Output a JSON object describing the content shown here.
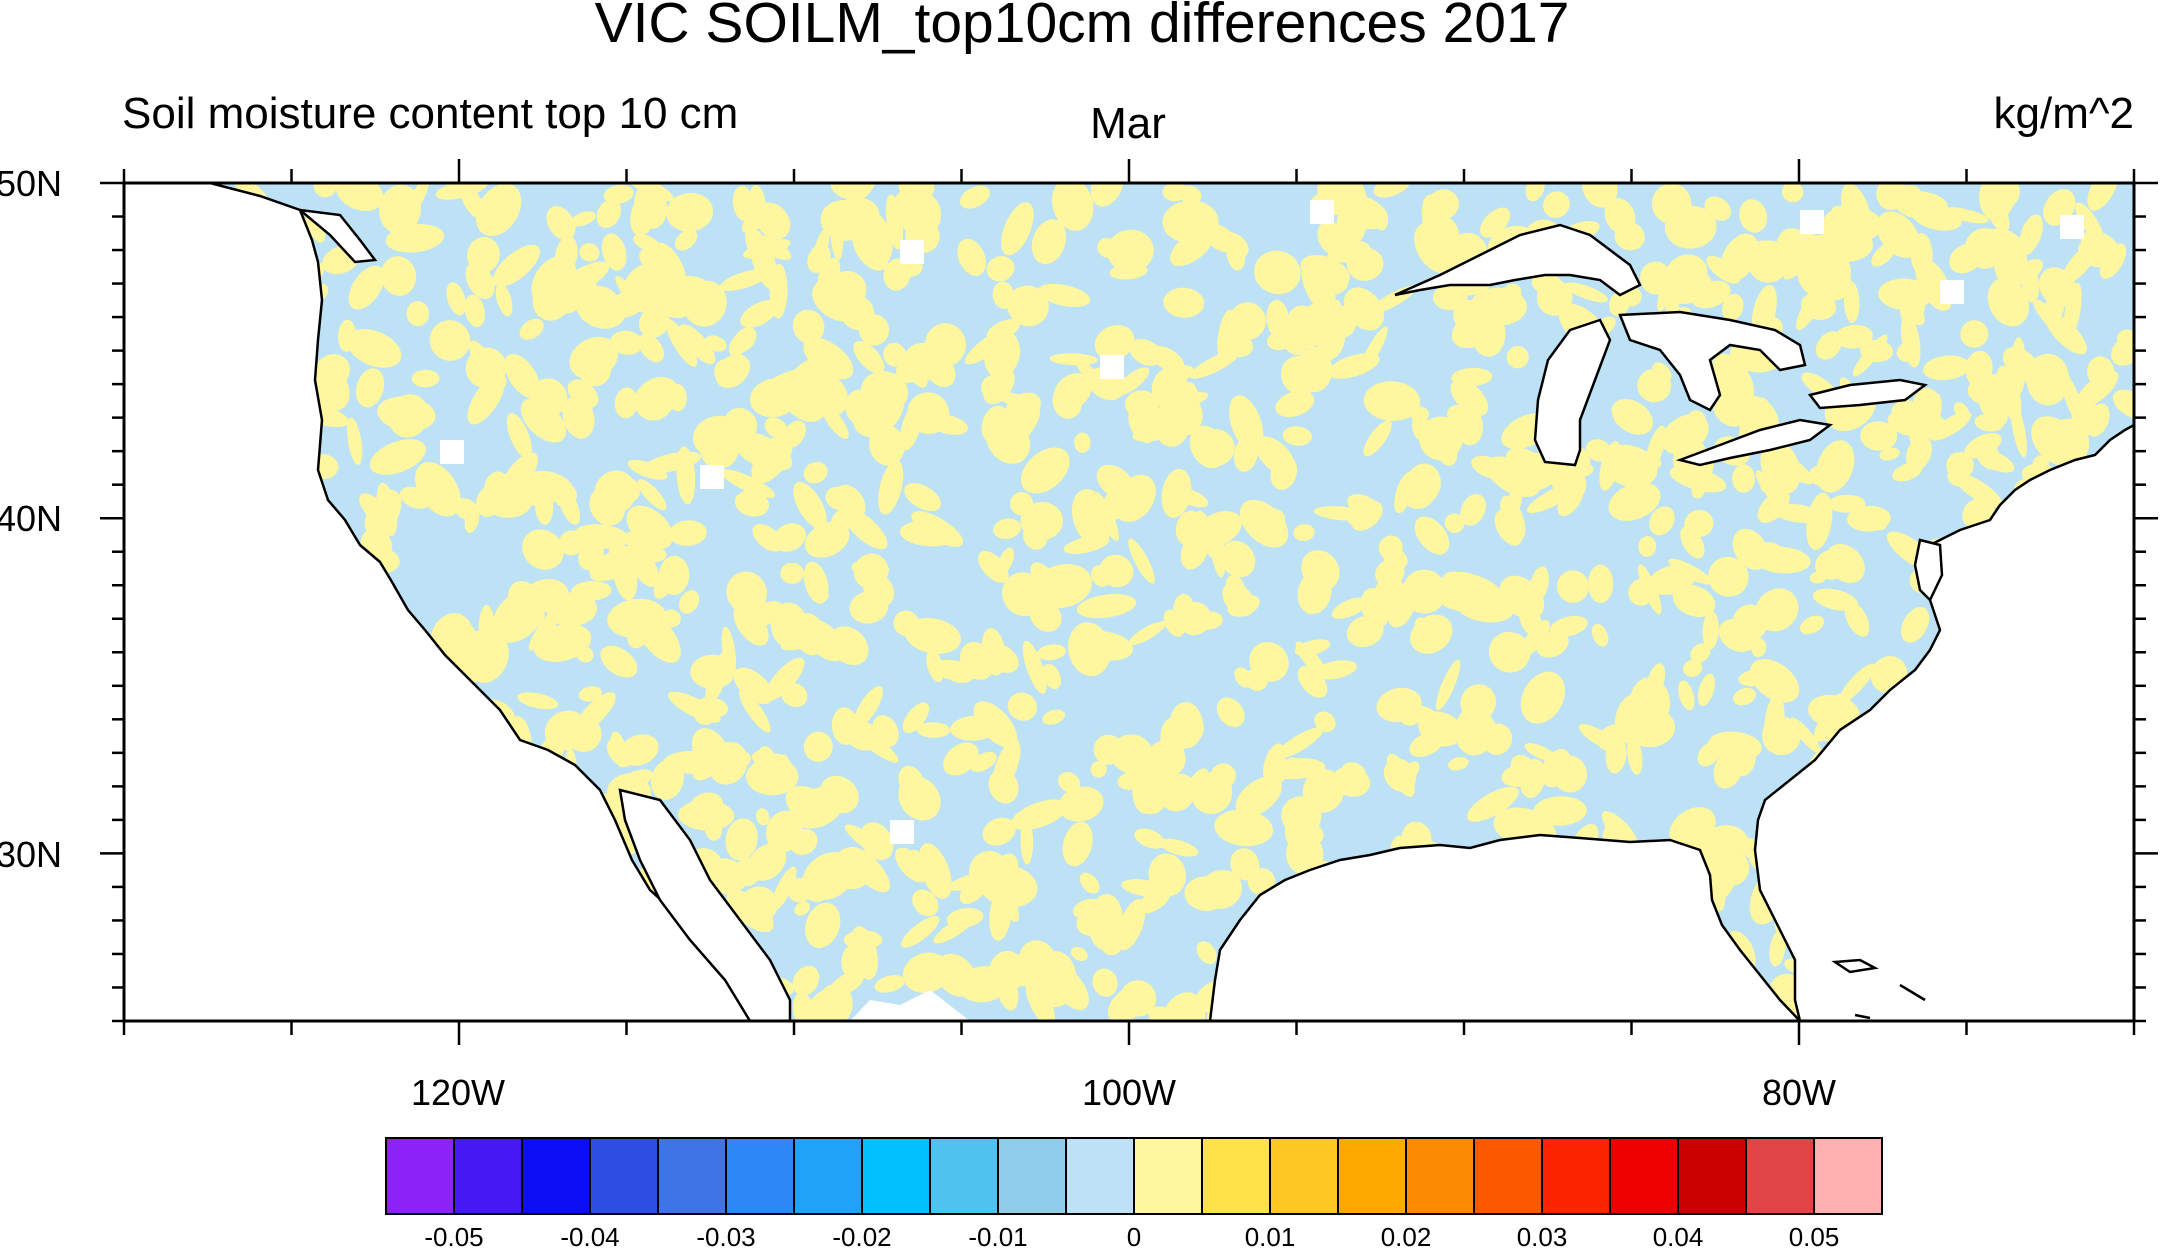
{
  "title": "VIC SOILM_top10cm differences 2017",
  "subtitle_left": "Soil moisture content top 10 cm",
  "subtitle_center": "Mar",
  "subtitle_right": "kg/m^2",
  "lat_labels": [
    "50N",
    "40N",
    "30N"
  ],
  "lon_labels": [
    "120W",
    "100W",
    "80W"
  ],
  "colorbar": {
    "colors": [
      "#8c22f5",
      "#4619f4",
      "#0c0ff4",
      "#2f4ee4",
      "#3e74e5",
      "#2d87f5",
      "#1fa2f8",
      "#00c0fe",
      "#4ec3f0",
      "#90cdea",
      "#bde2f5",
      "#fff6a0",
      "#ffe24a",
      "#fdc824",
      "#fca900",
      "#fc8a02",
      "#fc5800",
      "#fb2300",
      "#ec0000",
      "#cb0000",
      "#e04444",
      "#feb0b0"
    ],
    "labels": [
      "-0.05",
      "-0.04",
      "-0.03",
      "-0.02",
      "-0.01",
      "0",
      "0.01",
      "0.02",
      "0.03",
      "0.04",
      "0.05"
    ]
  },
  "chart_data": {
    "type": "heatmap",
    "title": "VIC SOILM_top10cm differences 2017",
    "subtitle_left": "Soil moisture content top 10 cm",
    "subtitle_center": "Mar",
    "units": "kg/m^2",
    "lon_range": [
      -130,
      -70
    ],
    "lat_range": [
      25,
      50
    ],
    "lon_ticks": [
      "120W",
      "100W",
      "80W"
    ],
    "lat_ticks": [
      "50N",
      "40N",
      "30N"
    ],
    "field": "mottled mix of near-zero differences",
    "dominant_classes": [
      {
        "range": "-0.005 to 0",
        "color": "#bde2f5"
      },
      {
        "range": "0 to 0.005",
        "color": "#fff6a0"
      }
    ],
    "levels": [
      -0.05,
      -0.045,
      -0.04,
      -0.035,
      -0.03,
      -0.025,
      -0.02,
      -0.015,
      -0.01,
      -0.005,
      0,
      0.005,
      0.01,
      0.015,
      0.02,
      0.025,
      0.03,
      0.035,
      0.04,
      0.045,
      0.05
    ]
  }
}
